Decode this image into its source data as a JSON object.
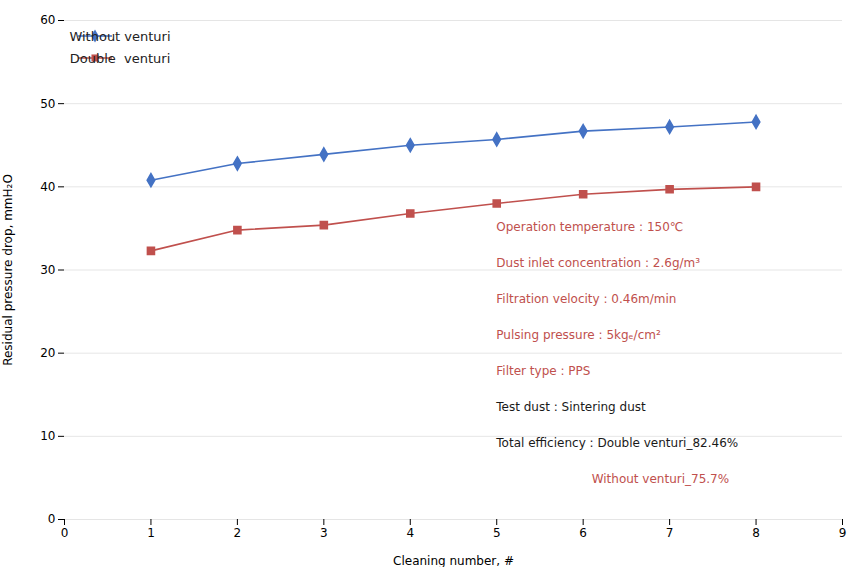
{
  "chart_data": {
    "type": "line",
    "xlabel": "Cleaning number, #",
    "ylabel": "Residual pressure drop, mmH₂O",
    "x": [
      1,
      2,
      3,
      4,
      5,
      6,
      7,
      8
    ],
    "series": [
      {
        "name": "Without venturi",
        "color": "#4472C4",
        "marker": "diamond",
        "values": [
          40.8,
          42.8,
          43.9,
          45.0,
          45.7,
          46.7,
          47.2,
          47.8
        ]
      },
      {
        "name": "Double  venturi",
        "color": "#C0504D",
        "marker": "square",
        "values": [
          32.3,
          34.8,
          35.4,
          36.8,
          38.0,
          39.1,
          39.7,
          40.0
        ]
      }
    ],
    "xlim": [
      0,
      9
    ],
    "ylim": [
      0,
      60
    ],
    "xticks": [
      0,
      1,
      2,
      3,
      4,
      5,
      6,
      7,
      8,
      9
    ],
    "yticks": [
      0,
      10,
      20,
      30,
      40,
      50,
      60
    ],
    "grid": "y",
    "legend": "upper left",
    "annotations": [
      {
        "text": "Operation temperature : 150℃",
        "color": "#C0504D"
      },
      {
        "text": "Dust inlet concentration : 2.6g/m³",
        "color": "#C0504D"
      },
      {
        "text": "Filtration velocity : 0.46m/min",
        "color": "#C0504D"
      },
      {
        "text": "Pulsing pressure : 5kgₑ/cm²",
        "color": "#C0504D"
      },
      {
        "text": "Filter type : PPS",
        "color": "#C0504D"
      },
      {
        "text": "Test dust : Sintering dust",
        "color": "#1a1a1a"
      },
      {
        "text": "Total efficiency : Double venturi_82.46%",
        "color": "#1a1a1a"
      },
      {
        "text": "                         Without venturi_75.7%",
        "color": "#C0504D"
      }
    ]
  }
}
